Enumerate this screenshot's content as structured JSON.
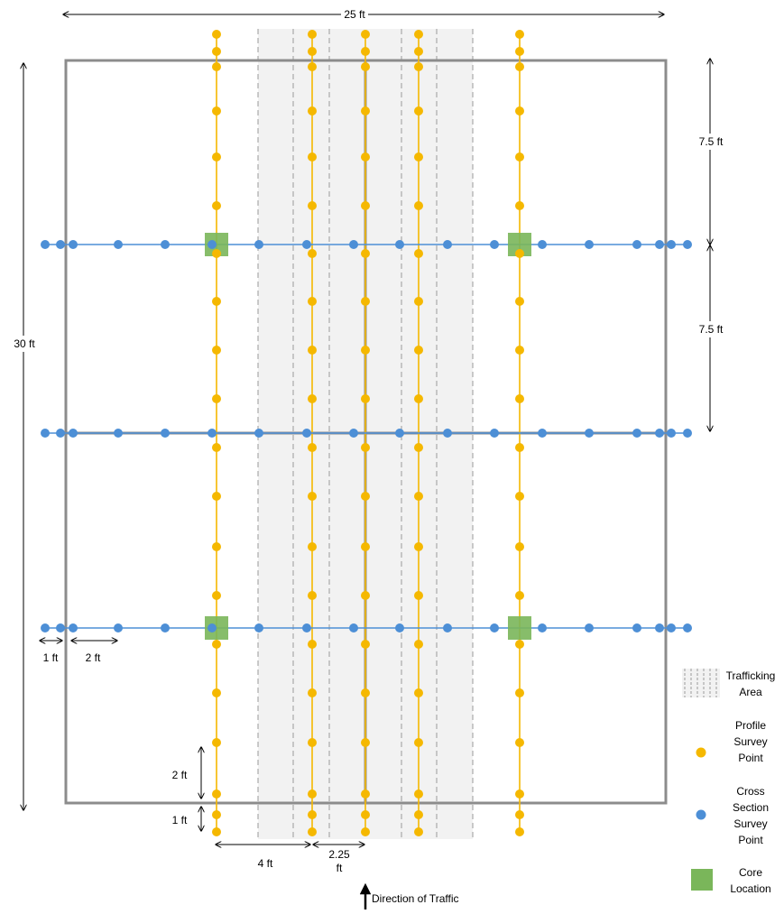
{
  "colors": {
    "slab_border": "#8c8c8c",
    "trafficking_fill": "#f2f2f2",
    "trafficking_dash": "#9a9a9a",
    "profile": "#f5b800",
    "cross_section": "#4d8fd6",
    "core": "#7ab65a",
    "arrow": "#000000"
  },
  "dimensions": {
    "width": "25 ft",
    "length": "30 ft",
    "spacing_upper": "7.5 ft",
    "spacing_lower": "7.5 ft",
    "edge_1ft": "1 ft",
    "edge_2ft": "2 ft",
    "profile_2ft": "2 ft",
    "profile_1ft": "1 ft",
    "offset_4ft": "4 ft",
    "offset_225_a": "2.25",
    "offset_225_b": "ft"
  },
  "traffic": {
    "label": "Direction of Traffic"
  },
  "legend": {
    "trafficking": [
      "Trafficking",
      "Area"
    ],
    "profile": [
      "Profile",
      "Survey",
      "Point"
    ],
    "cross_section": [
      "Cross",
      "Section",
      "Survey",
      "Point"
    ],
    "core": [
      "Core",
      "Location"
    ]
  }
}
